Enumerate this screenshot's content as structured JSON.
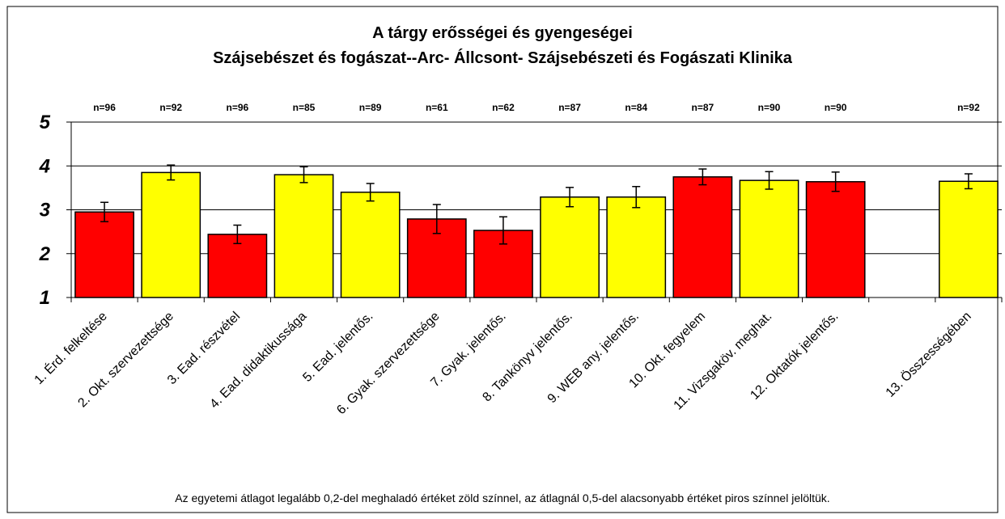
{
  "chart_data": {
    "type": "bar",
    "title": "A tárgy erősségei és gyengeségei",
    "subtitle": "Szájsebészet és fogászat--Arc- Állcsont- Szájsebészeti és Fogászati Klinika",
    "categories": [
      "1. Érd. felkeltése",
      "2. Okt. szervezettsége",
      "3. Ead. részvétel",
      "4. Ead. didaktikussága",
      "5. Ead. jelentős.",
      "6. Gyak. szervezettsége",
      "7. Gyak. jelentős.",
      "8. Tankönyv jelentős.",
      "9. WEB any. jelentős.",
      "10. Okt. fegyelem",
      "11. Vizsgaköv. meghat.",
      "12. Oktatók jelentős.",
      null,
      "13. Összességében"
    ],
    "n_labels": [
      "n=96",
      "n=92",
      "n=96",
      "n=85",
      "n=89",
      "n=61",
      "n=62",
      "n=87",
      "n=84",
      "n=87",
      "n=90",
      "n=90",
      null,
      "n=92"
    ],
    "series": [
      {
        "values": [
          2.95,
          3.85,
          2.44,
          3.8,
          3.4,
          2.79,
          2.53,
          3.29,
          3.29,
          3.75,
          3.67,
          3.64,
          null,
          3.65
        ],
        "errors": [
          0.22,
          0.17,
          0.21,
          0.18,
          0.2,
          0.33,
          0.31,
          0.22,
          0.24,
          0.18,
          0.2,
          0.22,
          null,
          0.17
        ],
        "colors": [
          "#ff0000",
          "#ffff00",
          "#ff0000",
          "#ffff00",
          "#ffff00",
          "#ff0000",
          "#ff0000",
          "#ffff00",
          "#ffff00",
          "#ff0000",
          "#ffff00",
          "#ff0000",
          null,
          "#ffff00"
        ]
      }
    ],
    "ylim": [
      1,
      5
    ],
    "yticks": [
      1,
      2,
      3,
      4,
      5
    ],
    "grid": true,
    "annotation": "Az egyetemi átlagot legalább 0,2-del meghaladó értéket zöld színnel, az átlagnál 0,5-del alacsonyabb értéket piros színnel jelöltük."
  }
}
